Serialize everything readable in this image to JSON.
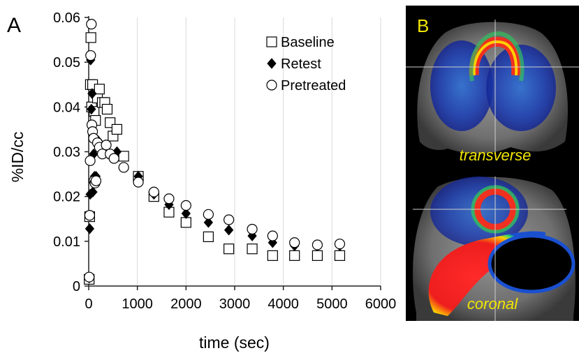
{
  "panel_a": {
    "label": "A",
    "chart_data": {
      "type": "scatter",
      "xlabel": "time (sec)",
      "ylabel": "%ID/cc",
      "xlim": [
        0,
        6000
      ],
      "ylim": [
        0,
        0.06
      ],
      "x_ticks": [
        "0",
        "1000",
        "2000",
        "3000",
        "4000",
        "5000",
        "6000"
      ],
      "y_ticks": [
        "0",
        "0.01",
        "0.02",
        "0.03",
        "0.04",
        "0.05",
        "0.06"
      ],
      "grid": "vertical",
      "legend_position": "top-right",
      "series": [
        {
          "name": "Baseline",
          "marker": "square",
          "points": [
            [
              10,
              0.0015
            ],
            [
              20,
              0.0155
            ],
            [
              35,
              0.045
            ],
            [
              45,
              0.0555
            ],
            [
              60,
              0.04
            ],
            [
              80,
              0.045
            ],
            [
              110,
              0.039
            ],
            [
              140,
              0.037
            ],
            [
              180,
              0.042
            ],
            [
              220,
              0.044
            ],
            [
              280,
              0.041
            ],
            [
              330,
              0.041
            ],
            [
              380,
              0.0395
            ],
            [
              440,
              0.0365
            ],
            [
              500,
              0.0335
            ],
            [
              580,
              0.035
            ],
            [
              720,
              0.029
            ],
            [
              1020,
              0.0245
            ],
            [
              1340,
              0.02
            ],
            [
              1650,
              0.0165
            ],
            [
              2000,
              0.0142
            ],
            [
              2460,
              0.011
            ],
            [
              2880,
              0.0083
            ],
            [
              3360,
              0.0083
            ],
            [
              3780,
              0.0068
            ],
            [
              4230,
              0.0068
            ],
            [
              4700,
              0.0068
            ],
            [
              5160,
              0.0068
            ]
          ]
        },
        {
          "name": "Retest",
          "marker": "diamond",
          "points": [
            [
              10,
              0.0018
            ],
            [
              20,
              0.0128
            ],
            [
              30,
              0.0205
            ],
            [
              40,
              0.0505
            ],
            [
              55,
              0.0395
            ],
            [
              70,
              0.043
            ],
            [
              85,
              0.021
            ],
            [
              100,
              0.0295
            ],
            [
              120,
              0.0245
            ],
            [
              150,
              0.0245
            ],
            [
              190,
              0.0325
            ],
            [
              240,
              0.0315
            ],
            [
              320,
              0.031
            ],
            [
              400,
              0.0295
            ],
            [
              480,
              0.029
            ],
            [
              580,
              0.03
            ],
            [
              1020,
              0.0245
            ],
            [
              1340,
              0.0205
            ],
            [
              1650,
              0.0182
            ],
            [
              2000,
              0.0162
            ],
            [
              2460,
              0.0142
            ],
            [
              2880,
              0.0125
            ],
            [
              3360,
              0.0112
            ],
            [
              3780,
              0.0097
            ],
            [
              4230,
              0.009
            ],
            [
              4700,
              0.009
            ],
            [
              5160,
              0.009
            ]
          ]
        },
        {
          "name": "Pretreated",
          "marker": "circle",
          "points": [
            [
              10,
              0.002
            ],
            [
              20,
              0.0158
            ],
            [
              30,
              0.028
            ],
            [
              40,
              0.0515
            ],
            [
              55,
              0.0585
            ],
            [
              65,
              0.036
            ],
            [
              80,
              0.0345
            ],
            [
              100,
              0.033
            ],
            [
              110,
              0.0235
            ],
            [
              130,
              0.023
            ],
            [
              150,
              0.0235
            ],
            [
              180,
              0.032
            ],
            [
              220,
              0.031
            ],
            [
              280,
              0.0295
            ],
            [
              360,
              0.0315
            ],
            [
              440,
              0.0295
            ],
            [
              520,
              0.0285
            ],
            [
              720,
              0.0265
            ],
            [
              1020,
              0.0232
            ],
            [
              1340,
              0.021
            ],
            [
              1650,
              0.0195
            ],
            [
              2000,
              0.018
            ],
            [
              2460,
              0.016
            ],
            [
              2880,
              0.0148
            ],
            [
              3360,
              0.0127
            ],
            [
              3780,
              0.0112
            ],
            [
              4230,
              0.0097
            ],
            [
              4700,
              0.0092
            ],
            [
              5160,
              0.0094
            ]
          ]
        }
      ]
    }
  },
  "panel_b": {
    "label": "B",
    "top_caption": "transverse",
    "bottom_caption": "coronal",
    "label_color": "#f2e600"
  }
}
